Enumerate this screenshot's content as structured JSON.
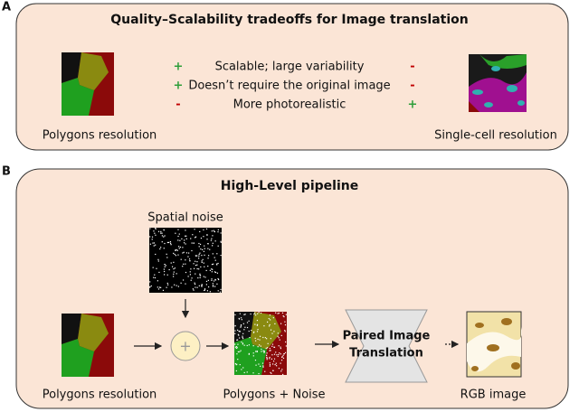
{
  "panel_a": {
    "label": "A",
    "title": "Quality–Scalability tradeoffs for Image translation",
    "left_caption": "Polygons resolution",
    "right_caption": "Single-cell resolution",
    "rows": [
      [
        "+",
        "Scalable; large variability",
        "-"
      ],
      [
        "+",
        "Doesn’t require the original image",
        "-"
      ],
      [
        "-",
        "More photorealistic",
        "+"
      ]
    ]
  },
  "panel_b": {
    "label": "B",
    "title": "High-Level pipeline",
    "noise_label": "Spatial noise",
    "plus": "+",
    "input_caption": "Polygons resolution",
    "noisy_caption": "Polygons + Noise",
    "model_lines": [
      "Paired Image",
      "Translation"
    ],
    "output_caption": "RGB image"
  }
}
